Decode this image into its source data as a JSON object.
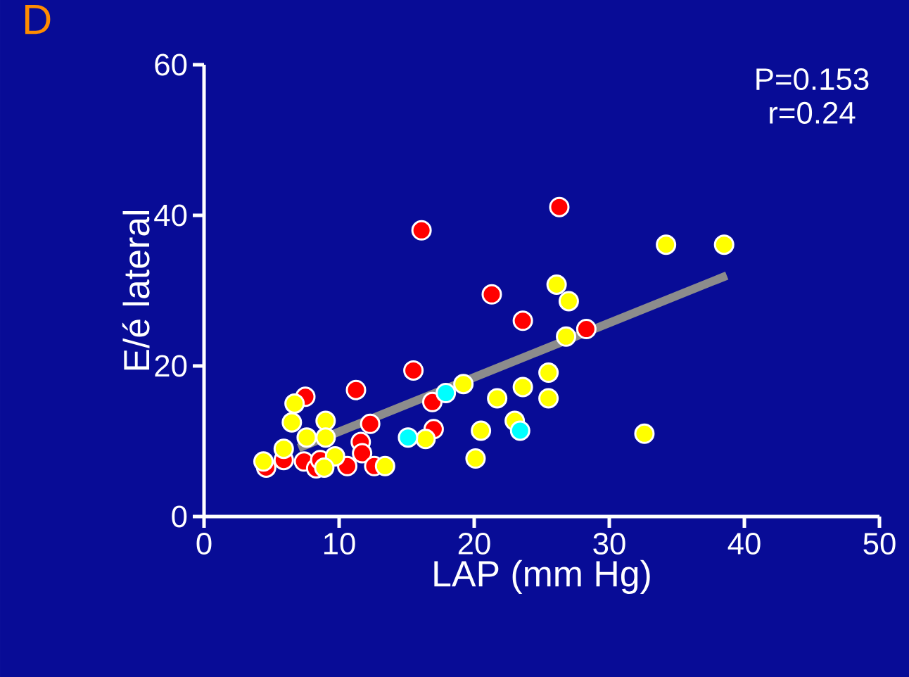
{
  "chart_data": {
    "type": "scatter",
    "title": "D",
    "xlabel": "LAP (mm Hg)",
    "ylabel": "E/é lateral",
    "annotations": [
      "P=0.153",
      "r=0.24"
    ],
    "xlim": [
      0,
      50
    ],
    "ylim": [
      0,
      60
    ],
    "xticks": [
      0,
      10,
      20,
      30,
      40,
      50
    ],
    "yticks": [
      0,
      20,
      40,
      60
    ],
    "grid": false,
    "series": [
      {
        "type": "line",
        "marker": "none",
        "color": "#8c8c8c",
        "x": [
          7,
          38.7
        ],
        "values": [
          9.1,
          32.0
        ]
      },
      {
        "marker": "circle",
        "color": "#ff0000",
        "x": [
          16.1,
          26.3,
          21.3,
          23.6,
          28.3,
          15.5,
          11.25,
          7.5,
          16.9,
          17.0,
          12.3,
          11.6,
          11.7,
          7.4,
          5.9,
          8.3,
          8.6,
          10.6,
          12.6,
          4.6
        ],
        "values": [
          38,
          41.1,
          29.5,
          26.0,
          24.9,
          19.4,
          16.8,
          15.9,
          15.2,
          11.6,
          12.3,
          9.9,
          8.4,
          7.3,
          7.5,
          6.4,
          7.5,
          6.7,
          6.7,
          6.5
        ]
      },
      {
        "marker": "circle",
        "color": "#ffff00",
        "x": [
          6.7,
          6.5,
          9.0,
          7.6,
          9.0,
          5.9,
          4.4,
          9.7,
          8.9,
          13.4,
          16.4,
          19.2,
          34.2,
          38.5,
          26.1,
          27.0,
          26.8,
          25.5,
          23.6,
          21.7,
          25.5,
          23.0,
          20.5,
          20.1,
          32.6
        ],
        "values": [
          15.0,
          12.5,
          12.7,
          10.5,
          10.5,
          9.0,
          7.3,
          8.0,
          6.5,
          6.7,
          10.3,
          17.6,
          36.1,
          36.1,
          30.8,
          28.6,
          23.9,
          19.1,
          17.2,
          15.7,
          15.7,
          12.7,
          11.4,
          7.7,
          11.0
        ]
      },
      {
        "marker": "circle",
        "color": "#00ffff",
        "x": [
          17.9,
          15.1,
          23.4
        ],
        "values": [
          16.4,
          10.5,
          11.4
        ]
      }
    ]
  }
}
